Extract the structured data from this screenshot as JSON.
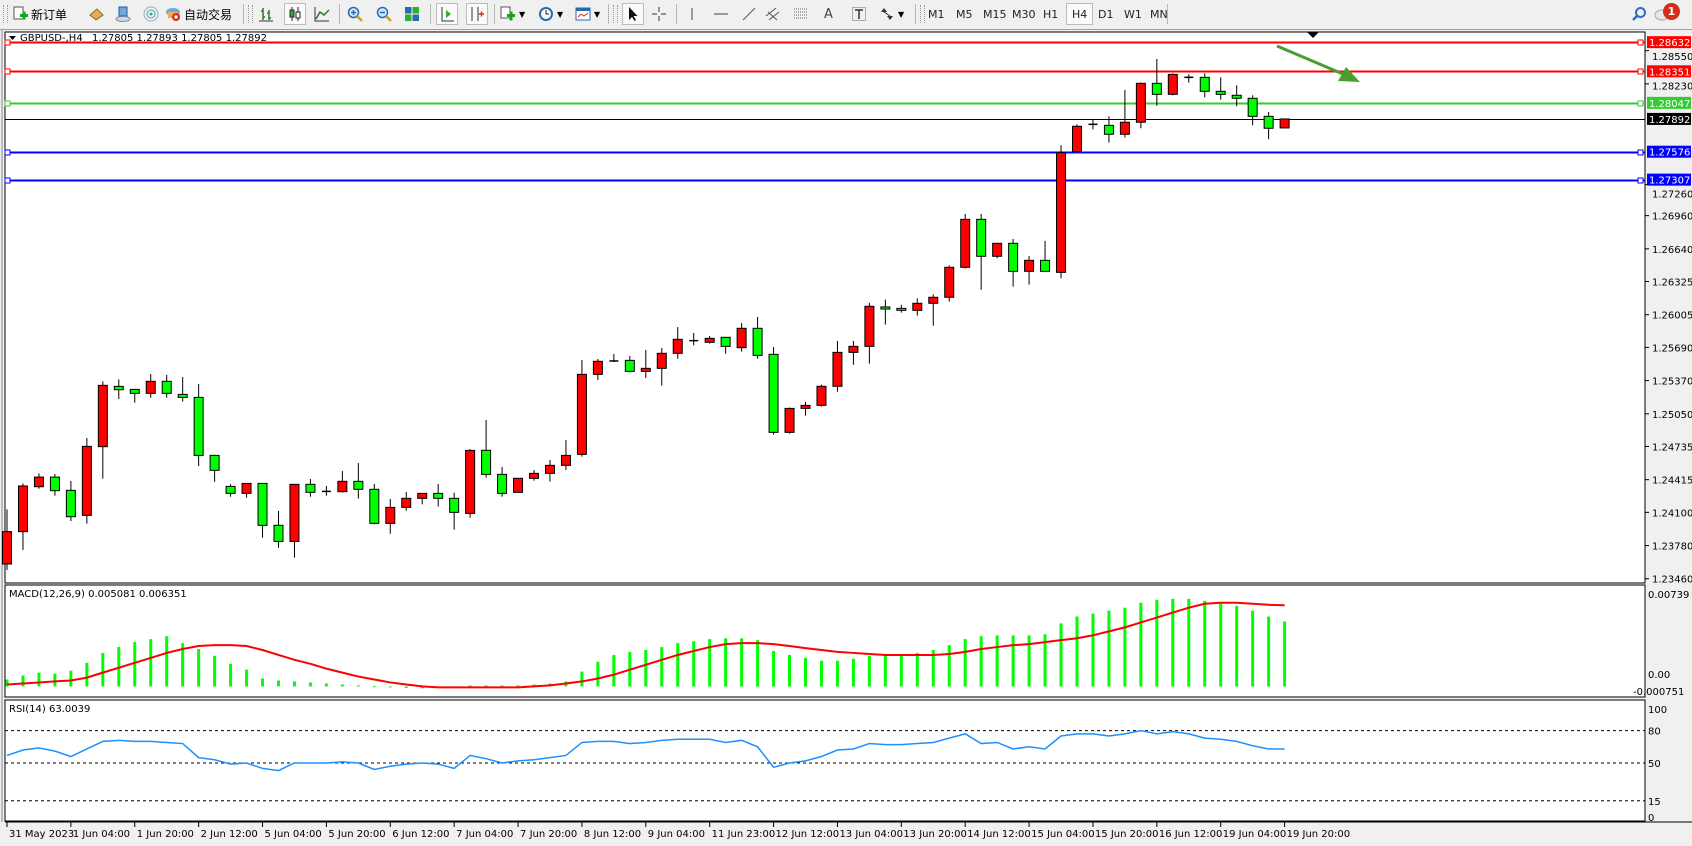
{
  "toolbar": {
    "new_order_label": "新订单",
    "auto_trading_label": "自动交易",
    "icons": [
      "new-order-icon",
      "market-watch-icon",
      "navigator-icon",
      "signals-icon",
      "auto-trading-icon",
      "bar-chart-icon",
      "candlestick-icon",
      "line-chart-icon",
      "zoom-in-icon",
      "zoom-out-icon",
      "tile-windows-icon",
      "auto-scroll-icon",
      "chart-shift-icon",
      "indicators-icon",
      "periods-icon",
      "templates-icon",
      "cursor-icon",
      "crosshair-icon",
      "vertical-line-icon",
      "horizontal-line-icon",
      "trendline-icon",
      "equidistant-channel-icon",
      "fibonacci-icon",
      "text-icon",
      "text-label-icon",
      "arrows-icon",
      "search-icon",
      "notifications-icon"
    ],
    "timeframes": [
      "M1",
      "M5",
      "M15",
      "M30",
      "H1",
      "H4",
      "D1",
      "W1",
      "MN"
    ],
    "active_timeframe": "H4",
    "notification_count": "1"
  },
  "chart_header": {
    "symbol_label": "GBPUSD-,H4",
    "ohlc_label": "1.27805 1.27893 1.27805 1.27892"
  },
  "colors": {
    "bull_candle": "#ff0000",
    "bear_candle": "#00ff00",
    "resistance_line": "#ff0000",
    "pivot_line": "#33cc33",
    "support_line": "#0000ff",
    "bid_line": "#000000",
    "macd_histogram": "#00ff00",
    "macd_signal": "#ff0000",
    "rsi_line": "#1e90ff",
    "arrow": "#4a9e2f"
  },
  "chart_data": [
    {
      "type": "candlestick",
      "symbol": "GBPUSD-",
      "timeframe": "H4",
      "ylim": [
        1.23419,
        1.28701
      ],
      "grid": false,
      "candles_ohlc": [
        [
          1.23602,
          1.24129,
          1.23544,
          1.23914
        ],
        [
          1.23914,
          1.24379,
          1.23737,
          1.24354
        ],
        [
          1.24347,
          1.24476,
          1.24328,
          1.2444
        ],
        [
          1.2444,
          1.24469,
          1.24261,
          1.24309
        ],
        [
          1.24312,
          1.24402,
          1.24016,
          1.24058
        ],
        [
          1.24071,
          1.24816,
          1.23991,
          1.24736
        ],
        [
          1.24733,
          1.25363,
          1.24424,
          1.25324
        ],
        [
          1.25314,
          1.25382,
          1.25192,
          1.25282
        ],
        [
          1.25285,
          1.2529,
          1.25157,
          1.25247
        ],
        [
          1.25247,
          1.25433,
          1.25205,
          1.25363
        ],
        [
          1.25363,
          1.25424,
          1.25205,
          1.25247
        ],
        [
          1.25237,
          1.25404,
          1.25167,
          1.25208
        ],
        [
          1.25208,
          1.25337,
          1.24546,
          1.24649
        ],
        [
          1.24649,
          1.24655,
          1.24395,
          1.24505
        ],
        [
          1.2435,
          1.24373,
          1.24251,
          1.24283
        ],
        [
          1.24283,
          1.24379,
          1.24241,
          1.24379
        ],
        [
          1.24379,
          1.24379,
          1.23856,
          1.23975
        ],
        [
          1.23975,
          1.24113,
          1.23759,
          1.2382
        ],
        [
          1.2382,
          1.2437,
          1.23663,
          1.2437
        ],
        [
          1.2437,
          1.24421,
          1.24251,
          1.24293
        ],
        [
          1.24302,
          1.24354,
          1.24261,
          1.24302
        ],
        [
          1.24299,
          1.24498,
          1.2429,
          1.24399
        ],
        [
          1.24399,
          1.24575,
          1.24232,
          1.24322
        ],
        [
          1.24322,
          1.24373,
          1.23985,
          1.23994
        ],
        [
          1.23994,
          1.24229,
          1.23894,
          1.24148
        ],
        [
          1.24148,
          1.24296,
          1.24116,
          1.24235
        ],
        [
          1.24235,
          1.24283,
          1.24177,
          1.24283
        ],
        [
          1.24283,
          1.24373,
          1.24155,
          1.24235
        ],
        [
          1.24235,
          1.2429,
          1.23933,
          1.241
        ],
        [
          1.2409,
          1.2471,
          1.24048,
          1.24697
        ],
        [
          1.24698,
          1.2499,
          1.24434,
          1.24466
        ],
        [
          1.24466,
          1.24537,
          1.24251,
          1.24283
        ],
        [
          1.24293,
          1.2443,
          1.2429,
          1.24428
        ],
        [
          1.24428,
          1.24508,
          1.24405,
          1.24476
        ],
        [
          1.24476,
          1.24604,
          1.24396,
          1.24553
        ],
        [
          1.24553,
          1.24797,
          1.24508,
          1.24649
        ],
        [
          1.24659,
          1.25568,
          1.24637,
          1.2543
        ],
        [
          1.2543,
          1.25578,
          1.25376,
          1.25556
        ],
        [
          1.25559,
          1.25626,
          1.2555,
          1.25559
        ],
        [
          1.25565,
          1.25607,
          1.2545,
          1.25459
        ],
        [
          1.25459,
          1.25665,
          1.25395,
          1.25488
        ],
        [
          1.25488,
          1.25684,
          1.25321,
          1.25633
        ],
        [
          1.25633,
          1.25886,
          1.25581,
          1.25768
        ],
        [
          1.25755,
          1.25829,
          1.2571,
          1.25755
        ],
        [
          1.25739,
          1.258,
          1.25727,
          1.25777
        ],
        [
          1.25787,
          1.2579,
          1.25629,
          1.257
        ],
        [
          1.25687,
          1.25925,
          1.25649,
          1.25874
        ],
        [
          1.25874,
          1.25983,
          1.25581,
          1.25613
        ],
        [
          1.25623,
          1.25694,
          1.24849,
          1.24871
        ],
        [
          1.24871,
          1.2511,
          1.2486,
          1.25102
        ],
        [
          1.25102,
          1.25164,
          1.25032,
          1.25131
        ],
        [
          1.25131,
          1.2533,
          1.2512,
          1.25315
        ],
        [
          1.25315,
          1.25752,
          1.25263,
          1.25642
        ],
        [
          1.25642,
          1.25752,
          1.25523,
          1.257
        ],
        [
          1.257,
          1.2612,
          1.25533,
          1.26086
        ],
        [
          1.2608,
          1.2615,
          1.25909,
          1.2606
        ],
        [
          1.26066,
          1.261,
          1.26025,
          1.26047
        ],
        [
          1.26047,
          1.26163,
          1.25996,
          1.26115
        ],
        [
          1.26115,
          1.26201,
          1.25899,
          1.26173
        ],
        [
          1.26173,
          1.26481,
          1.26131,
          1.26462
        ],
        [
          1.26462,
          1.26976,
          1.2645,
          1.26924
        ],
        [
          1.26924,
          1.26976,
          1.26246,
          1.26568
        ],
        [
          1.26568,
          1.26693,
          1.2655,
          1.26693
        ],
        [
          1.26693,
          1.26735,
          1.26275,
          1.26423
        ],
        [
          1.26423,
          1.26571,
          1.26295,
          1.26529
        ],
        [
          1.26529,
          1.26716,
          1.26423,
          1.26423
        ],
        [
          1.26413,
          1.27638,
          1.26356,
          1.27567
        ],
        [
          1.27577,
          1.2784,
          1.2757,
          1.27821
        ],
        [
          1.2783,
          1.27882,
          1.27792,
          1.2784
        ],
        [
          1.2783,
          1.27917,
          1.27664,
          1.27744
        ],
        [
          1.27744,
          1.28171,
          1.27712,
          1.2786
        ],
        [
          1.2786,
          1.28245,
          1.27802,
          1.28235
        ],
        [
          1.28235,
          1.2847,
          1.2802,
          1.28129
        ],
        [
          1.28129,
          1.28332,
          1.2812,
          1.28321
        ],
        [
          1.28293,
          1.28322,
          1.28242,
          1.28293
        ],
        [
          1.28293,
          1.28332,
          1.281,
          1.28158
        ],
        [
          1.28158,
          1.28293,
          1.28078,
          1.28129
        ],
        [
          1.2812,
          1.28216,
          1.28014,
          1.28091
        ],
        [
          1.28091,
          1.2812,
          1.27831,
          1.27917
        ],
        [
          1.27917,
          1.27959,
          1.27696,
          1.27802
        ],
        [
          1.27805,
          1.27893,
          1.27805,
          1.27892
        ]
      ],
      "price_axis_ticks": [
        "1.28550",
        "1.28230",
        "1.27260",
        "1.26960",
        "1.26640",
        "1.26325",
        "1.26005",
        "1.25690",
        "1.25370",
        "1.25050",
        "1.24735",
        "1.24415",
        "1.24100",
        "1.23780",
        "1.23460"
      ],
      "time_axis_labels": [
        "31 May 2023",
        "1 Jun 04:00",
        "1 Jun 20:00",
        "2 Jun 12:00",
        "5 Jun 04:00",
        "5 Jun 20:00",
        "6 Jun 12:00",
        "7 Jun 04:00",
        "7 Jun 20:00",
        "8 Jun 12:00",
        "9 Jun 04:00",
        "11 Jun 23:00",
        "12 Jun 12:00",
        "13 Jun 04:00",
        "13 Jun 20:00",
        "14 Jun 12:00",
        "15 Jun 04:00",
        "15 Jun 20:00",
        "16 Jun 12:00",
        "19 Jun 04:00",
        "19 Jun 20:00"
      ],
      "time_label_every_n_candles": 4,
      "horizontal_lines": [
        {
          "price": 1.28632,
          "label": "1.28632",
          "kind": "resistance"
        },
        {
          "price": 1.28351,
          "label": "1.28351",
          "kind": "resistance"
        },
        {
          "price": 1.28047,
          "label": "1.28047",
          "kind": "pivot"
        },
        {
          "price": 1.27892,
          "label": "1.27892",
          "kind": "bid"
        },
        {
          "price": 1.27576,
          "label": "1.27576",
          "kind": "support"
        },
        {
          "price": 1.27307,
          "label": "1.27307",
          "kind": "support"
        }
      ],
      "annotation_arrow": {
        "direction": "down-right"
      }
    },
    {
      "type": "bar+line",
      "indicator_label": "MACD(12,26,9) 0.005081 0.006351",
      "ylim": [
        -0.000751,
        0.00739
      ],
      "axis_labels": [
        "0.00739",
        "0.00",
        "-0.000751"
      ],
      "histogram": [
        0.00054,
        0.00085,
        0.00108,
        0.001,
        0.00123,
        0.00185,
        0.00262,
        0.00308,
        0.00347,
        0.0037,
        0.00393,
        0.00339,
        0.00293,
        0.00239,
        0.00177,
        0.00131,
        0.00062,
        0.00046,
        0.00039,
        0.00031,
        0.00023,
        0.00015,
        8e-05,
        2e-05,
        -8e-05,
        -0.00012,
        -0.00015,
        -0.00012,
        -8e-05,
        8e-05,
        8e-05,
        8e-05,
        8e-05,
        0.00015,
        0.00023,
        0.00039,
        0.00116,
        0.00193,
        0.00246,
        0.0027,
        0.00285,
        0.00308,
        0.00339,
        0.00354,
        0.0037,
        0.00377,
        0.00377,
        0.00362,
        0.00277,
        0.00246,
        0.00223,
        0.002,
        0.002,
        0.00216,
        0.00239,
        0.00246,
        0.00246,
        0.00262,
        0.00285,
        0.00323,
        0.0037,
        0.00393,
        0.004,
        0.004,
        0.004,
        0.00408,
        0.00493,
        0.00547,
        0.0057,
        0.00593,
        0.00616,
        0.00655,
        0.00678,
        0.00685,
        0.00685,
        0.0067,
        0.00647,
        0.00631,
        0.00593,
        0.00547,
        0.005081
      ],
      "signal": [
        0.00015,
        0.00023,
        0.00031,
        0.00039,
        0.00046,
        0.00069,
        0.00108,
        0.00146,
        0.00185,
        0.00223,
        0.00262,
        0.00293,
        0.00316,
        0.00323,
        0.00323,
        0.00316,
        0.00285,
        0.00246,
        0.00208,
        0.00177,
        0.00139,
        0.00108,
        0.00077,
        0.00054,
        0.00031,
        0.00015,
        0.0,
        -8e-05,
        -8e-05,
        -8e-05,
        -8e-05,
        -8e-05,
        -8e-05,
        0.0,
        8e-05,
        0.00023,
        0.00039,
        0.00062,
        0.00092,
        0.00131,
        0.00169,
        0.00208,
        0.00246,
        0.00277,
        0.00308,
        0.00331,
        0.00339,
        0.00339,
        0.00331,
        0.00316,
        0.003,
        0.00285,
        0.0027,
        0.00262,
        0.00254,
        0.00246,
        0.00246,
        0.00246,
        0.00246,
        0.00254,
        0.0027,
        0.00293,
        0.00308,
        0.00323,
        0.00331,
        0.00347,
        0.00362,
        0.00377,
        0.004,
        0.00431,
        0.00462,
        0.00501,
        0.00539,
        0.00578,
        0.00616,
        0.00647,
        0.00655,
        0.00655,
        0.00647,
        0.00639,
        0.006351
      ]
    },
    {
      "type": "line",
      "indicator_label": "RSI(14) 63.0039",
      "ylim": [
        0,
        100
      ],
      "axis_labels": [
        "100",
        "80",
        "50",
        "15",
        "0"
      ],
      "levels": [
        80,
        50,
        15
      ],
      "values": [
        57,
        62,
        64,
        61,
        56,
        63,
        70,
        71,
        70,
        70,
        69,
        68,
        55,
        53,
        49,
        50,
        45,
        43,
        50,
        50,
        50,
        51,
        50,
        44,
        47,
        49,
        50,
        49,
        45,
        57,
        54,
        50,
        52,
        53,
        55,
        57,
        69,
        70,
        70,
        68,
        69,
        71,
        72,
        72,
        72,
        69,
        71,
        65,
        46,
        50,
        52,
        56,
        62,
        63,
        68,
        67,
        67,
        68,
        69,
        73,
        77,
        68,
        69,
        63,
        65,
        63,
        75,
        77,
        77,
        75,
        77,
        80,
        77,
        79,
        77,
        73,
        72,
        70,
        66,
        63,
        63.0039
      ]
    }
  ]
}
